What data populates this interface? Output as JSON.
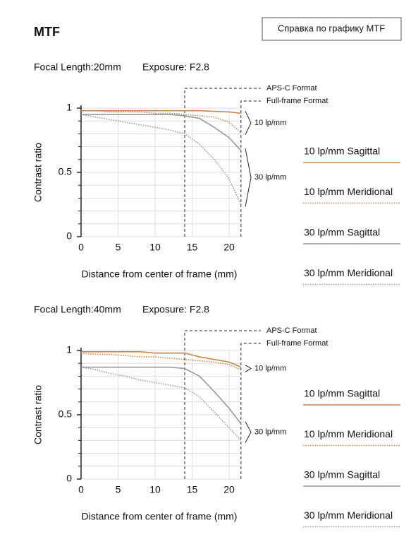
{
  "header": {
    "title": "MTF",
    "button": "Справка по графику MTF"
  },
  "chart_data": [
    {
      "type": "line",
      "focal_length": "Focal Length:20mm",
      "exposure": "Exposure: F2.8",
      "xlabel": "Distance from center of frame (mm)",
      "ylabel": "Contrast ratio",
      "x": [
        0,
        2,
        4,
        6,
        8,
        10,
        12,
        14,
        16,
        18,
        20,
        21.6
      ],
      "series": [
        {
          "name": "10 lp/mm Sagittal",
          "color": "#c8864a",
          "style": "solid",
          "values": [
            0.98,
            0.98,
            0.98,
            0.98,
            0.98,
            0.98,
            0.98,
            0.98,
            0.98,
            0.975,
            0.97,
            0.96
          ]
        },
        {
          "name": "10 lp/mm Meridional",
          "color": "#c8864a",
          "style": "dotted",
          "values": [
            0.98,
            0.98,
            0.97,
            0.97,
            0.97,
            0.96,
            0.96,
            0.95,
            0.94,
            0.93,
            0.89,
            0.81
          ]
        },
        {
          "name": "30 lp/mm Sagittal",
          "color": "#999999",
          "style": "solid",
          "values": [
            0.95,
            0.95,
            0.95,
            0.95,
            0.95,
            0.95,
            0.95,
            0.94,
            0.92,
            0.85,
            0.77,
            0.67
          ]
        },
        {
          "name": "30 lp/mm Meridional",
          "color": "#999999",
          "style": "dotted",
          "values": [
            0.95,
            0.93,
            0.91,
            0.89,
            0.87,
            0.85,
            0.83,
            0.8,
            0.72,
            0.6,
            0.45,
            0.25
          ]
        }
      ],
      "format_lines": [
        {
          "label": "APS-C Format",
          "x": 14
        },
        {
          "label": "Full-frame Format",
          "x": 21.6
        }
      ],
      "frequency_labels": [
        "10 lp/mm",
        "30 lp/mm"
      ],
      "xlim": [
        0,
        21.6
      ],
      "xticks": [
        0,
        5,
        10,
        15,
        20
      ],
      "ylim": [
        0,
        1
      ],
      "yticks": [
        0,
        0.5,
        1
      ],
      "yticks_minor": [
        0.1,
        0.2,
        0.3,
        0.4,
        0.6,
        0.7,
        0.8,
        0.9
      ],
      "grid": true
    },
    {
      "type": "line",
      "focal_length": "Focal Length:40mm",
      "exposure": "Exposure: F2.8",
      "xlabel": "Distance from center of frame (mm)",
      "ylabel": "Contrast ratio",
      "x": [
        0,
        2,
        4,
        6,
        8,
        10,
        12,
        14,
        16,
        18,
        20,
        21.6
      ],
      "series": [
        {
          "name": "10 lp/mm Sagittal",
          "color": "#c8864a",
          "style": "solid",
          "values": [
            0.99,
            0.99,
            0.99,
            0.99,
            0.99,
            0.98,
            0.98,
            0.98,
            0.95,
            0.93,
            0.91,
            0.87
          ]
        },
        {
          "name": "10 lp/mm Meridional",
          "color": "#c8864a",
          "style": "dotted",
          "values": [
            0.98,
            0.97,
            0.97,
            0.96,
            0.95,
            0.95,
            0.94,
            0.93,
            0.92,
            0.91,
            0.89,
            0.85
          ]
        },
        {
          "name": "30 lp/mm Sagittal",
          "color": "#999999",
          "style": "solid",
          "values": [
            0.87,
            0.87,
            0.87,
            0.87,
            0.87,
            0.87,
            0.87,
            0.86,
            0.8,
            0.68,
            0.55,
            0.43
          ]
        },
        {
          "name": "30 lp/mm Meridional",
          "color": "#999999",
          "style": "dotted",
          "values": [
            0.87,
            0.85,
            0.82,
            0.8,
            0.77,
            0.75,
            0.73,
            0.71,
            0.64,
            0.52,
            0.4,
            0.3
          ]
        }
      ],
      "format_lines": [
        {
          "label": "APS-C Format",
          "x": 14
        },
        {
          "label": "Full-frame Format",
          "x": 21.6
        }
      ],
      "frequency_labels": [
        "10 lp/mm",
        "30 lp/mm"
      ],
      "xlim": [
        0,
        21.6
      ],
      "xticks": [
        0,
        5,
        10,
        15,
        20
      ],
      "ylim": [
        0,
        1
      ],
      "yticks": [
        0,
        0.5,
        1
      ],
      "yticks_minor": [
        0.1,
        0.2,
        0.3,
        0.4,
        0.6,
        0.7,
        0.8,
        0.9
      ],
      "grid": true
    }
  ]
}
